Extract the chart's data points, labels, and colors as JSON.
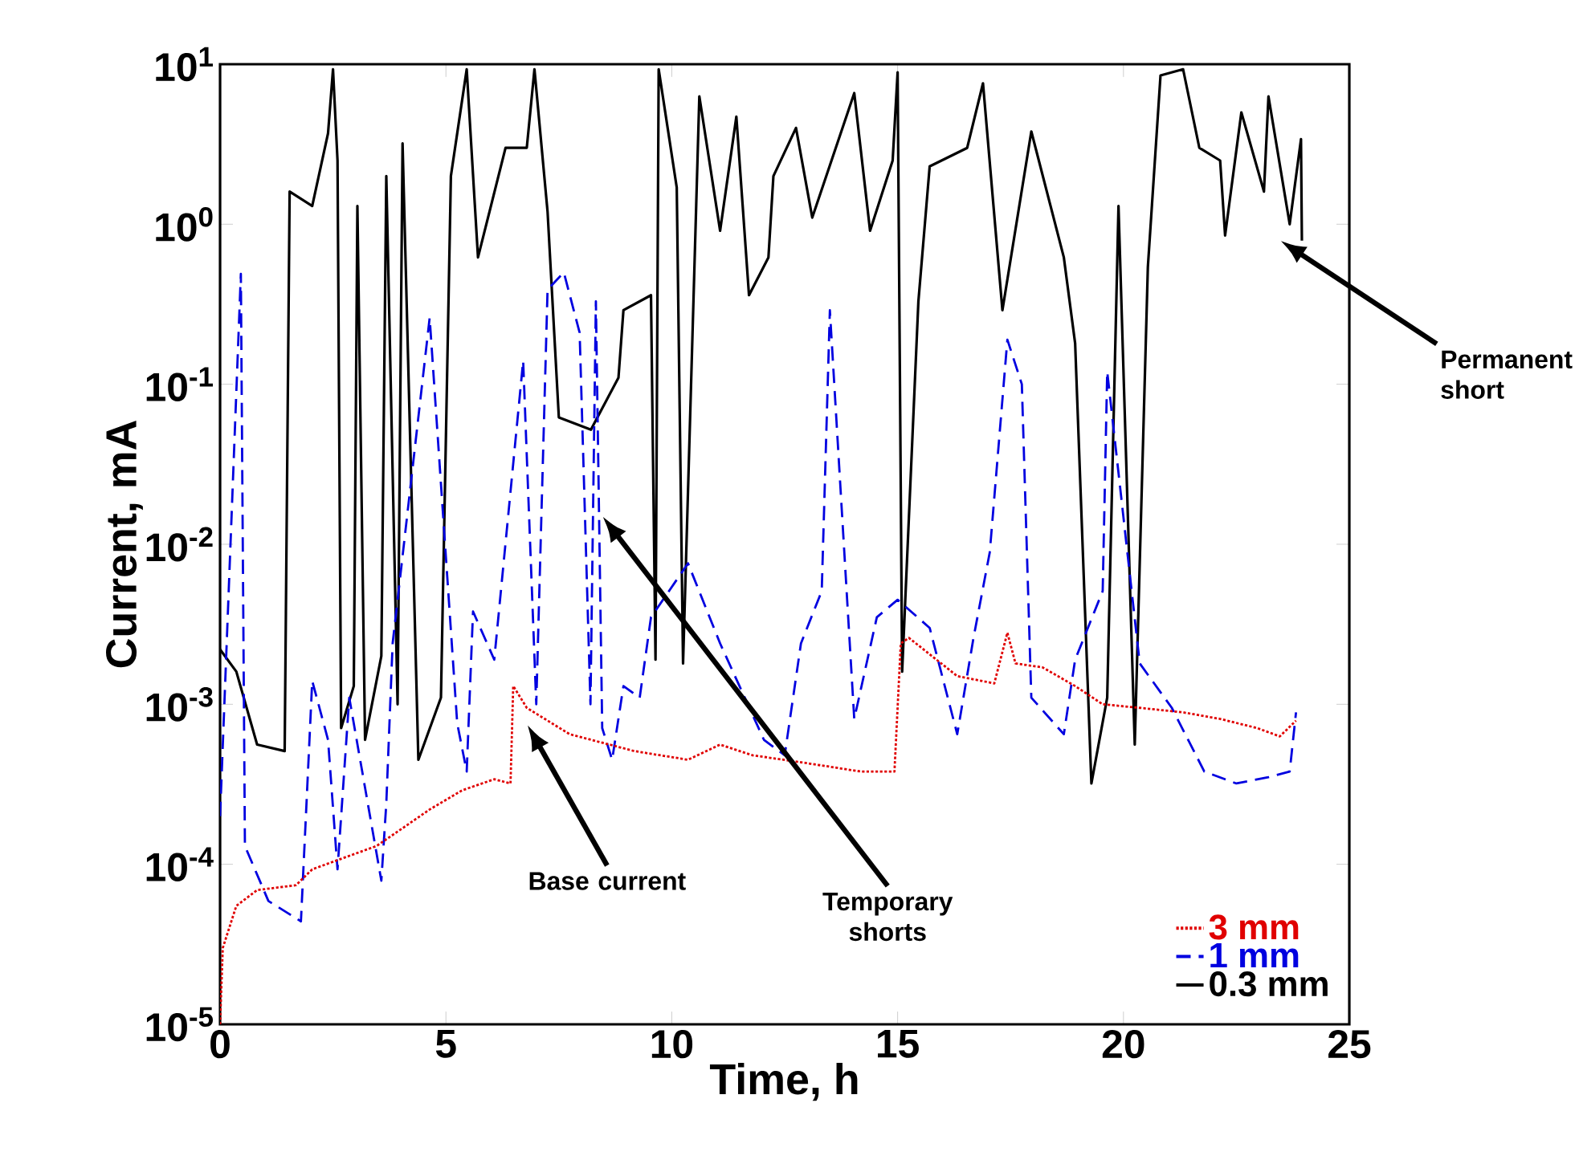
{
  "chart_data": {
    "type": "line",
    "xlabel": "Time, h",
    "ylabel": "Current, mA",
    "xlim": [
      0,
      25
    ],
    "xticks": [
      0,
      5,
      10,
      15,
      20,
      25
    ],
    "ylim": [
      1e-05,
      10
    ],
    "log": "y",
    "yticks": [
      {
        "value": 1e-05,
        "label": "10$^{-5}$"
      },
      {
        "value": 0.0001,
        "label": "10$^{-4}$"
      },
      {
        "value": 0.001,
        "label": "10$^{-3}$"
      },
      {
        "value": 0.01,
        "label": "10$^{-2}$"
      },
      {
        "value": 0.1,
        "label": "10$^{-1}$"
      },
      {
        "value": 1,
        "label": "10$^{0}$"
      },
      {
        "value": 10,
        "label": "10$^{1}$"
      }
    ],
    "legend": "bottom right",
    "series": [
      {
        "name": "3 mm",
        "color": "#e00000",
        "line_style": "dotted",
        "x": [
          0,
          0.06,
          0.36,
          0.82,
          1.68,
          2.04,
          2.75,
          3.46,
          3.93,
          4.64,
          5.36,
          6.07,
          6.43,
          6.49,
          6.79,
          7.74,
          9.17,
          10.36,
          11.07,
          11.79,
          12.96,
          14.18,
          14.93,
          15.07,
          15.25,
          16.32,
          17.14,
          17.43,
          17.61,
          18.21,
          18.93,
          19.54,
          20.36,
          21.32,
          22.14,
          22.96,
          23.46,
          23.82
        ],
        "values": [
          1e-05,
          3e-05,
          5.5e-05,
          6.9e-05,
          7.4e-05,
          9.3e-05,
          0.00011,
          0.00013,
          0.00016,
          0.00022,
          0.00029,
          0.00034,
          0.00032,
          0.0013,
          0.00095,
          0.00065,
          0.00051,
          0.00045,
          0.00056,
          0.00048,
          0.00043,
          0.00038,
          0.00038,
          0.0024,
          0.0026,
          0.0015,
          0.00135,
          0.0028,
          0.0018,
          0.0017,
          0.0013,
          0.001,
          0.00095,
          0.00089,
          0.00081,
          0.00071,
          0.00063,
          0.00079
        ]
      },
      {
        "name": "1 mm",
        "color": "#0000e0",
        "line_style": "dashed",
        "x": [
          0,
          0.46,
          0.55,
          1.07,
          1.79,
          1.9,
          2.04,
          2.39,
          2.6,
          2.86,
          3.57,
          3.68,
          3.82,
          4.64,
          5.25,
          5.46,
          5.6,
          6.07,
          6.71,
          7.0,
          7.25,
          7.61,
          7.96,
          8.2,
          8.32,
          8.46,
          8.68,
          8.93,
          9.29,
          9.54,
          10.36,
          11.07,
          12.04,
          12.5,
          12.86,
          13.32,
          13.5,
          14.04,
          14.54,
          15.0,
          15.71,
          16.32,
          16.68,
          17.04,
          17.43,
          17.75,
          17.96,
          18.68,
          18.93,
          19.54,
          19.64,
          20.36,
          21.07,
          21.79,
          22.5,
          23.21,
          23.68,
          23.82
        ],
        "values": [
          0.0002,
          0.49,
          0.00013,
          5.9e-05,
          4.4e-05,
          0.0002,
          0.0014,
          0.0006,
          9.3e-05,
          0.0011,
          7.9e-05,
          0.00024,
          0.0024,
          0.26,
          0.00076,
          0.00038,
          0.0038,
          0.0019,
          0.14,
          0.001,
          0.39,
          0.5,
          0.21,
          0.001,
          0.33,
          0.00071,
          0.00045,
          0.0013,
          0.0011,
          0.0035,
          0.0076,
          0.0024,
          0.0006,
          0.00048,
          0.0024,
          0.0051,
          0.29,
          0.00081,
          0.0035,
          0.0045,
          0.003,
          0.00065,
          0.0026,
          0.0089,
          0.19,
          0.1,
          0.0011,
          0.00065,
          0.0019,
          0.0051,
          0.12,
          0.0018,
          0.00095,
          0.00038,
          0.00032,
          0.00035,
          0.00038,
          0.00089
        ]
      },
      {
        "name": "0.3 mm",
        "color": "#000000",
        "line_style": "solid",
        "x": [
          0,
          0.36,
          0.82,
          1.43,
          1.54,
          2.04,
          2.39,
          2.5,
          2.6,
          2.68,
          2.96,
          3.04,
          3.21,
          3.57,
          3.68,
          3.93,
          4.04,
          4.39,
          4.89,
          5.11,
          5.46,
          5.71,
          6.32,
          6.79,
          6.96,
          7.25,
          7.5,
          8.21,
          8.82,
          8.93,
          9.54,
          9.64,
          9.71,
          10.11,
          10.25,
          10.61,
          11.07,
          11.43,
          11.71,
          12.14,
          12.25,
          12.75,
          13.11,
          14.04,
          14.39,
          14.89,
          15.0,
          15.1,
          15.46,
          15.71,
          16.54,
          16.89,
          17.32,
          17.96,
          18.68,
          18.93,
          19.29,
          19.64,
          19.89,
          20.25,
          20.54,
          20.82,
          21.32,
          21.68,
          22.14,
          22.25,
          22.61,
          23.11,
          23.21,
          23.68,
          23.93,
          23.95
        ],
        "values": [
          0.0022,
          0.0016,
          0.00056,
          0.00051,
          1.6,
          1.3,
          3.7,
          9.3,
          2.5,
          0.00071,
          0.0013,
          1.3,
          0.0006,
          0.002,
          2.0,
          0.001,
          3.2,
          0.00045,
          0.0011,
          2.0,
          9.3,
          0.62,
          3.0,
          3.0,
          9.3,
          1.2,
          0.062,
          0.052,
          0.11,
          0.29,
          0.36,
          0.0019,
          9.3,
          1.7,
          0.0018,
          6.3,
          0.91,
          4.7,
          0.36,
          0.62,
          2.0,
          4.0,
          1.1,
          6.6,
          0.91,
          2.5,
          8.9,
          0.0016,
          0.33,
          2.3,
          3.0,
          7.6,
          0.29,
          3.8,
          0.62,
          0.18,
          0.00032,
          0.0011,
          1.3,
          0.00056,
          0.54,
          8.5,
          9.3,
          3.0,
          2.5,
          0.85,
          5.0,
          1.6,
          6.3,
          1.0,
          3.4,
          0.79
        ]
      }
    ],
    "annotations": [
      "Base current",
      "Temporary shorts",
      "Permanent short"
    ]
  }
}
